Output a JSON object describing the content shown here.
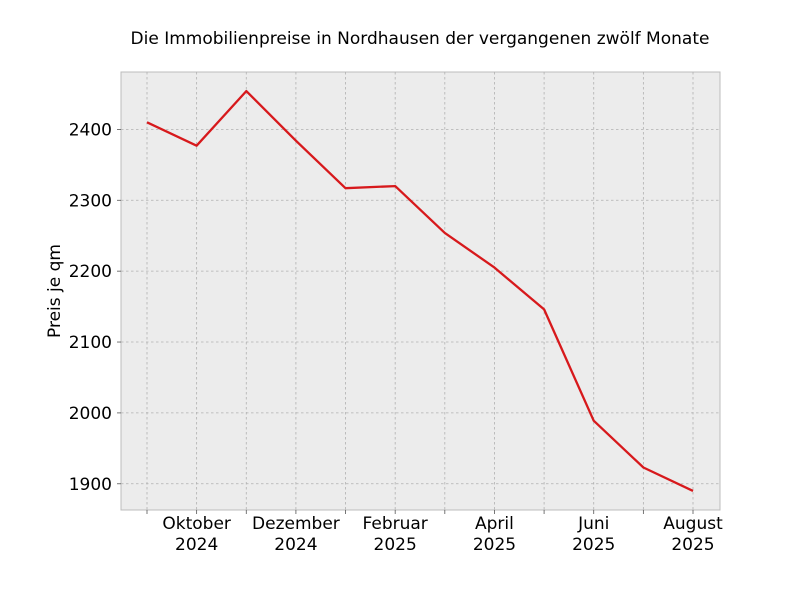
{
  "chart_data": {
    "type": "line",
    "title": "Die Immobilienpreise in Nordhausen der vergangenen zwölf Monate",
    "xlabel": "",
    "ylabel": "Preis je qm",
    "x": [
      "2024-09",
      "2024-10",
      "2024-11",
      "2024-12",
      "2025-01",
      "2025-02",
      "2025-03",
      "2025-04",
      "2025-05",
      "2025-06",
      "2025-07",
      "2025-08"
    ],
    "x_tick_labels": [
      {
        "x": "2024-10",
        "line1": "Oktober",
        "line2": "2024"
      },
      {
        "x": "2024-12",
        "line1": "Dezember",
        "line2": "2024"
      },
      {
        "x": "2025-02",
        "line1": "Februar",
        "line2": "2025"
      },
      {
        "x": "2025-04",
        "line1": "April",
        "line2": "2025"
      },
      {
        "x": "2025-06",
        "line1": "Juni",
        "line2": "2025"
      },
      {
        "x": "2025-08",
        "line1": "August",
        "line2": "2025"
      }
    ],
    "series": [
      {
        "values": [
          2410,
          2377,
          2454,
          2384,
          2317,
          2320,
          2254,
          2205,
          2146,
          1989,
          1923,
          1890
        ],
        "color": "#d7191c"
      }
    ],
    "ylim": [
      1863,
      2481
    ],
    "yticks": [
      1900,
      2000,
      2100,
      2200,
      2300,
      2400
    ],
    "grid": true,
    "background": "#ececec",
    "legend": "none"
  }
}
